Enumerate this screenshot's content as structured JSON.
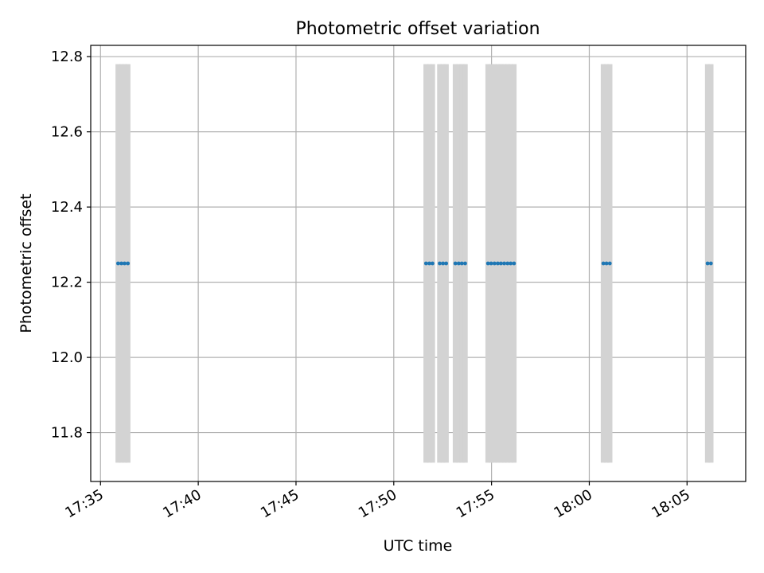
{
  "chart_data": {
    "type": "scatter",
    "title": "Photometric offset variation",
    "xlabel": "UTC time",
    "ylabel": "Photometric offset",
    "x_unit": "HH:MM (UTC)",
    "xlim": [
      "17:34.5",
      "18:08.0"
    ],
    "ylim": [
      11.67,
      12.83
    ],
    "x_ticks": [
      "17:35",
      "17:40",
      "17:45",
      "17:50",
      "17:55",
      "18:00",
      "18:05"
    ],
    "y_ticks": [
      11.8,
      12.0,
      12.2,
      12.4,
      12.6,
      12.8
    ],
    "grid": true,
    "point_color": "#1f77b4",
    "errorbar_color": "#d3d3d3",
    "series": [
      {
        "x": [
          "17:35.90",
          "17:36.07",
          "17:36.23",
          "17:36.40",
          "17:51.65",
          "17:51.82",
          "17:51.98",
          "17:52.35",
          "17:52.52",
          "17:52.68",
          "17:53.15",
          "17:53.32",
          "17:53.48",
          "17:53.65",
          "17:54.82",
          "17:54.98",
          "17:55.15",
          "17:55.32",
          "17:55.48",
          "17:55.65",
          "17:55.82",
          "17:55.98",
          "17:56.15",
          "18:00.72",
          "18:00.88",
          "18:01.05",
          "18:06.05",
          "18:06.22"
        ],
        "y": [
          12.25,
          12.25,
          12.25,
          12.25,
          12.25,
          12.25,
          12.25,
          12.25,
          12.25,
          12.25,
          12.25,
          12.25,
          12.25,
          12.25,
          12.25,
          12.25,
          12.25,
          12.25,
          12.25,
          12.25,
          12.25,
          12.25,
          12.25,
          12.25,
          12.25,
          12.25,
          12.25,
          12.25
        ],
        "yerr": [
          [
            11.72,
            12.78
          ],
          [
            11.72,
            12.78
          ],
          [
            11.72,
            12.78
          ],
          [
            11.72,
            12.78
          ],
          [
            11.72,
            12.78
          ],
          [
            11.72,
            12.78
          ],
          [
            11.72,
            12.78
          ],
          [
            11.72,
            12.78
          ],
          [
            11.72,
            12.78
          ],
          [
            11.72,
            12.78
          ],
          [
            11.72,
            12.78
          ],
          [
            11.72,
            12.78
          ],
          [
            11.72,
            12.78
          ],
          [
            11.72,
            12.78
          ],
          [
            11.72,
            12.78
          ],
          [
            11.72,
            12.78
          ],
          [
            11.72,
            12.78
          ],
          [
            11.72,
            12.78
          ],
          [
            11.72,
            12.78
          ],
          [
            11.72,
            12.78
          ],
          [
            11.72,
            12.78
          ],
          [
            11.72,
            12.78
          ],
          [
            11.72,
            12.78
          ],
          [
            11.72,
            12.78
          ],
          [
            11.72,
            12.78
          ],
          [
            11.72,
            12.78
          ],
          [
            11.72,
            12.78
          ],
          [
            11.72,
            12.78
          ]
        ]
      }
    ]
  }
}
